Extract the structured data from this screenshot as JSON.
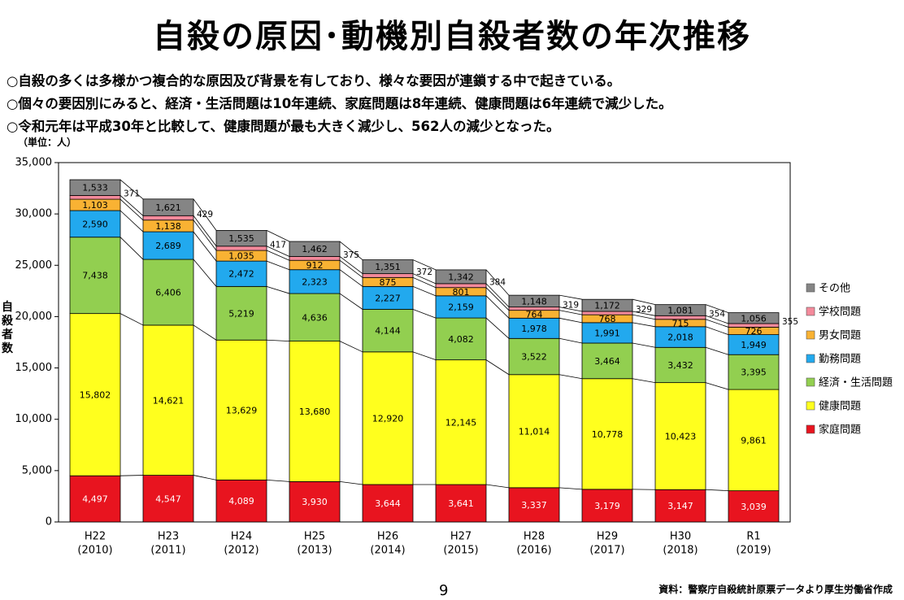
{
  "title": "自殺の原因･動機別自殺者数の年次推移",
  "bullets": [
    "○自殺の多くは多様かつ複合的な原因及び背景を有しており、様々な要因が連鎖する中で起きている。",
    "○個々の要因別にみると、経済・生活問題は10年連続、家庭問題は8年連続、健康問題は6年連続で減少した。",
    "○令和元年は平成30年と比較して、健康問題が最も大きく減少し、562人の減少となった。"
  ],
  "page_number": "9",
  "source": "資料：警察庁自殺統計原票データより厚生労働省作成",
  "chart_data": {
    "type": "bar",
    "stacked": true,
    "unit_label": "（単位：人）",
    "ylabel": "自殺者数",
    "ylim": [
      0,
      35000
    ],
    "yticks": [
      0,
      5000,
      10000,
      15000,
      20000,
      25000,
      30000,
      35000
    ],
    "ytick_labels": [
      "0",
      "5,000",
      "10,000",
      "15,000",
      "20,000",
      "25,000",
      "30,000",
      "35,000"
    ],
    "categories": [
      "H22\n(2010)",
      "H23\n(2011)",
      "H24\n(2012)",
      "H25\n(2013)",
      "H26\n(2014)",
      "H27\n(2015)",
      "H28\n(2016)",
      "H29\n(2017)",
      "H30\n(2018)",
      "R1\n(2019)"
    ],
    "series": [
      {
        "name": "家庭問題",
        "color": "#e8141f",
        "values": [
          4497,
          4547,
          4089,
          3930,
          3644,
          3641,
          3337,
          3179,
          3147,
          3039
        ]
      },
      {
        "name": "健康問題",
        "color": "#ffff1e",
        "values": [
          15802,
          14621,
          13629,
          13680,
          12920,
          12145,
          11014,
          10778,
          10423,
          9861
        ]
      },
      {
        "name": "経済・生活問題",
        "color": "#92cf50",
        "values": [
          7438,
          6406,
          5219,
          4636,
          4144,
          4082,
          3522,
          3464,
          3432,
          3395
        ]
      },
      {
        "name": "勤務問題",
        "color": "#22a9ee",
        "values": [
          2590,
          2689,
          2472,
          2323,
          2227,
          2159,
          1978,
          1991,
          2018,
          1949
        ]
      },
      {
        "name": "男女問題",
        "color": "#f9b233",
        "values": [
          1103,
          1138,
          1035,
          912,
          875,
          801,
          764,
          768,
          715,
          726
        ]
      },
      {
        "name": "学校問題",
        "color": "#f48a9b",
        "values": [
          371,
          429,
          417,
          375,
          372,
          384,
          319,
          329,
          354,
          355
        ]
      },
      {
        "name": "その他",
        "color": "#858585",
        "values": [
          1533,
          1621,
          1535,
          1462,
          1351,
          1342,
          1148,
          1172,
          1081,
          1056
        ]
      }
    ],
    "legend_order": [
      "その他",
      "学校問題",
      "男女問題",
      "勤務問題",
      "経済・生活問題",
      "健康問題",
      "家庭問題"
    ],
    "legend_position": "right",
    "grid": false
  }
}
